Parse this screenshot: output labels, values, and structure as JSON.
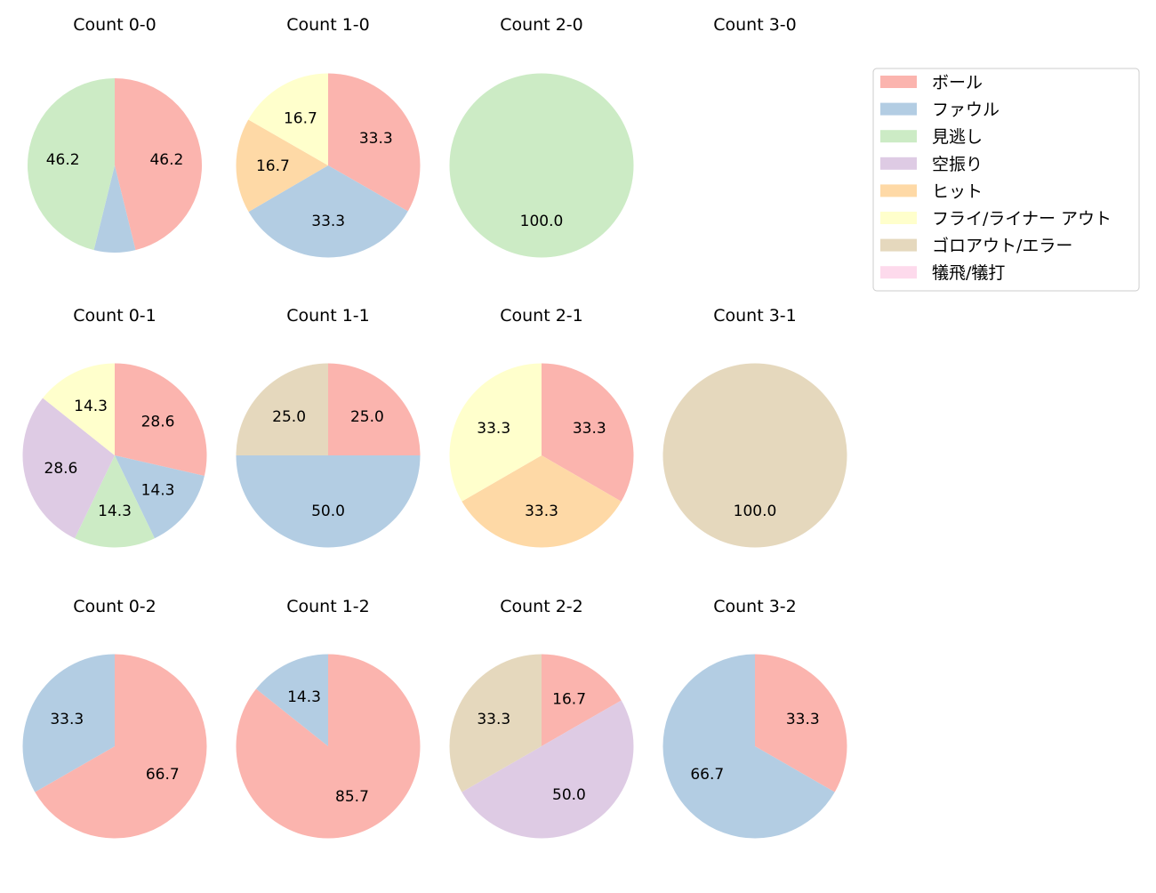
{
  "chart_data": {
    "type": "pie",
    "categories": [
      "ボール",
      "ファウル",
      "見逃し",
      "空振り",
      "ヒット",
      "フライ/ライナー アウト",
      "ゴロアウト/エラー",
      "犠飛/犠打"
    ],
    "colors": [
      "#fbb4ae",
      "#b3cde3",
      "#ccebc5",
      "#decbe4",
      "#fed9a6",
      "#ffffcc",
      "#e5d8bd",
      "#fddaec"
    ],
    "legend_position": "right",
    "start_angle": 90,
    "direction": "clockwise",
    "pies": [
      {
        "title": "Count 0-0",
        "values": [
          46.2,
          7.7,
          46.2,
          0,
          0,
          0,
          0,
          0
        ],
        "labels": [
          "46.2",
          "",
          "46.2",
          "",
          "",
          "",
          "",
          ""
        ]
      },
      {
        "title": "Count 1-0",
        "values": [
          33.3,
          33.3,
          0,
          0,
          16.7,
          16.7,
          0,
          0
        ],
        "labels": [
          "33.3",
          "33.3",
          "",
          "",
          "16.7",
          "16.7",
          "",
          ""
        ]
      },
      {
        "title": "Count 2-0",
        "values": [
          0,
          0,
          100,
          0,
          0,
          0,
          0,
          0
        ],
        "labels": [
          "",
          "",
          "100.0",
          "",
          "",
          "",
          "",
          ""
        ]
      },
      {
        "title": "Count 3-0",
        "values": [
          0,
          0,
          0,
          0,
          0,
          0,
          0,
          0
        ],
        "labels": [
          "",
          "",
          "",
          "",
          "",
          "",
          "",
          ""
        ]
      },
      {
        "title": "Count 0-1",
        "values": [
          28.6,
          14.3,
          14.3,
          28.6,
          0,
          14.3,
          0,
          0
        ],
        "labels": [
          "28.6",
          "14.3",
          "14.3",
          "28.6",
          "",
          "14.3",
          "",
          ""
        ]
      },
      {
        "title": "Count 1-1",
        "values": [
          25,
          50,
          0,
          0,
          0,
          0,
          25,
          0
        ],
        "labels": [
          "25.0",
          "50.0",
          "",
          "",
          "",
          "",
          "25.0",
          ""
        ]
      },
      {
        "title": "Count 2-1",
        "values": [
          33.3,
          0,
          0,
          0,
          33.3,
          33.3,
          0,
          0
        ],
        "labels": [
          "33.3",
          "",
          "",
          "",
          "33.3",
          "33.3",
          "",
          ""
        ]
      },
      {
        "title": "Count 3-1",
        "values": [
          0,
          0,
          0,
          0,
          0,
          0,
          100,
          0
        ],
        "labels": [
          "",
          "",
          "",
          "",
          "",
          "",
          "100.0",
          ""
        ]
      },
      {
        "title": "Count 0-2",
        "values": [
          66.7,
          33.3,
          0,
          0,
          0,
          0,
          0,
          0
        ],
        "labels": [
          "66.7",
          "33.3",
          "",
          "",
          "",
          "",
          "",
          ""
        ]
      },
      {
        "title": "Count 1-2",
        "values": [
          85.7,
          14.3,
          0,
          0,
          0,
          0,
          0,
          0
        ],
        "labels": [
          "85.7",
          "14.3",
          "",
          "",
          "",
          "",
          "",
          ""
        ]
      },
      {
        "title": "Count 2-2",
        "values": [
          16.7,
          0,
          0,
          50,
          0,
          0,
          33.3,
          0
        ],
        "labels": [
          "16.7",
          "",
          "",
          "50.0",
          "",
          "",
          "33.3",
          ""
        ]
      },
      {
        "title": "Count 3-2",
        "values": [
          33.3,
          66.7,
          0,
          0,
          0,
          0,
          0,
          0
        ],
        "labels": [
          "33.3",
          "66.7",
          "",
          "",
          "",
          "",
          "",
          ""
        ]
      }
    ]
  }
}
